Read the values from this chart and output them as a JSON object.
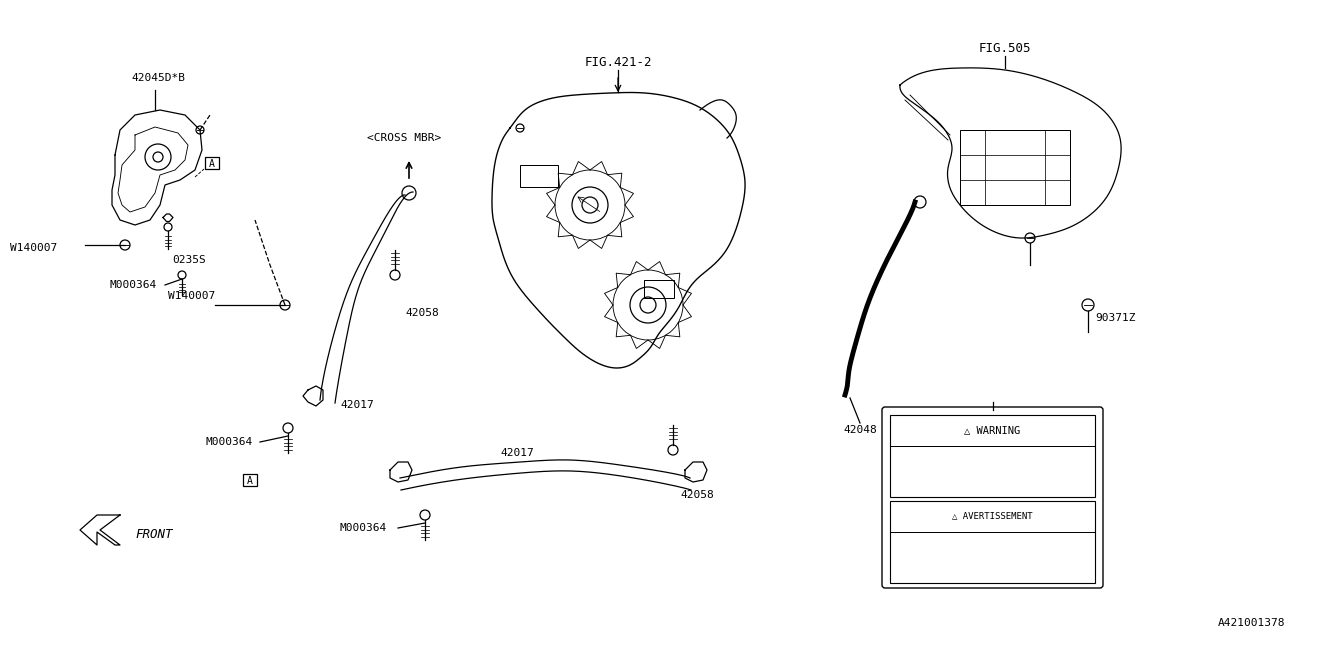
{
  "bg_color": "#ffffff",
  "line_color": "#000000",
  "fig_ref1": "FIG.421-2",
  "fig_ref2": "FIG.505",
  "diagram_id": "A421001378",
  "labels": {
    "part1": "42045D*B",
    "w1": "W140007",
    "cross_mbr": "<CROSS MBR>",
    "w2": "W140007",
    "screw1": "0235S",
    "bolt1": "M000364",
    "pipe1a": "42017",
    "pipe1b": "42058",
    "pipe2a": "42017",
    "pipe2b": "42058",
    "bolt2": "M000364",
    "wire": "42048",
    "screw2": "90371Z",
    "warn": "WARNING",
    "avert": "AVERTISSEMENT",
    "front": "FRONT",
    "boxA": "A"
  }
}
